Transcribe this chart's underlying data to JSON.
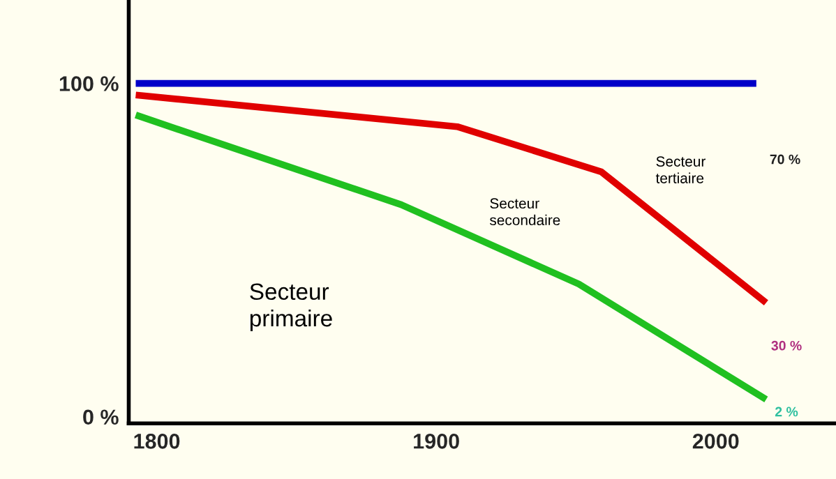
{
  "chart_data": {
    "type": "line",
    "series": [
      {
        "color": "#0000c8",
        "x": [
          1792.5,
          2014.5
        ],
        "values": [
          100,
          100
        ]
      },
      {
        "color": "#e00000",
        "x": [
          1792.5,
          1907.5,
          1959,
          2018
        ],
        "values": [
          96.5,
          87,
          73.5,
          34.2
        ]
      },
      {
        "color": "#20c020",
        "x": [
          1792.5,
          1887.5,
          1951,
          2018
        ],
        "values": [
          90.5,
          63.6,
          39.8,
          5.2
        ]
      }
    ],
    "xlim": [
      1790,
      2043
    ],
    "xticks": [
      1800,
      1900,
      2000
    ],
    "ylim": [
      -2,
      125
    ],
    "yticks": [
      {
        "value": 0,
        "label": "0 %"
      },
      {
        "value": 100,
        "label": "100 %"
      }
    ],
    "annotations": [
      "Secteur\nprimaire",
      "Secteur\nsecondaire",
      "Secteur\ntertiaire",
      "70 %",
      "30 %",
      "2 %"
    ],
    "grid": false,
    "marker": "none",
    "line_style": "solid"
  }
}
